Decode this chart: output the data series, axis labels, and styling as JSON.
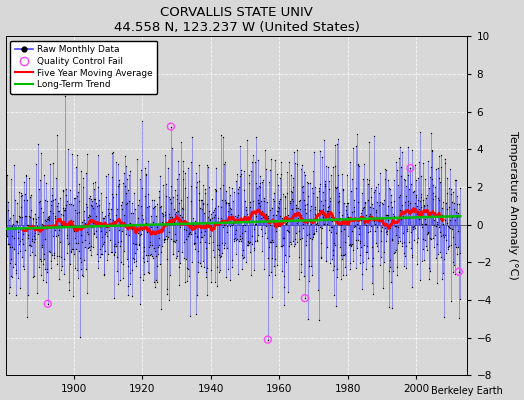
{
  "title": "CORVALLIS STATE UNIV",
  "subtitle": "44.558 N, 123.237 W (United States)",
  "ylabel": "Temperature Anomaly (°C)",
  "credit": "Berkeley Earth",
  "xlim": [
    1880,
    2015
  ],
  "ylim": [
    -8,
    10
  ],
  "yticks": [
    -8,
    -6,
    -4,
    -2,
    0,
    2,
    4,
    6,
    8,
    10
  ],
  "xticks": [
    1900,
    1920,
    1940,
    1960,
    1980,
    2000
  ],
  "raw_color": "#4444ff",
  "moving_avg_color": "#ff0000",
  "trend_color": "#00bb00",
  "qc_color": "#ff44ff",
  "background_color": "#d8d8d8",
  "seed": 42,
  "start_year": 1880,
  "end_year": 2012,
  "qc_fail_indices": [
    580,
    148,
    1050,
    920,
    1420,
    1590
  ]
}
